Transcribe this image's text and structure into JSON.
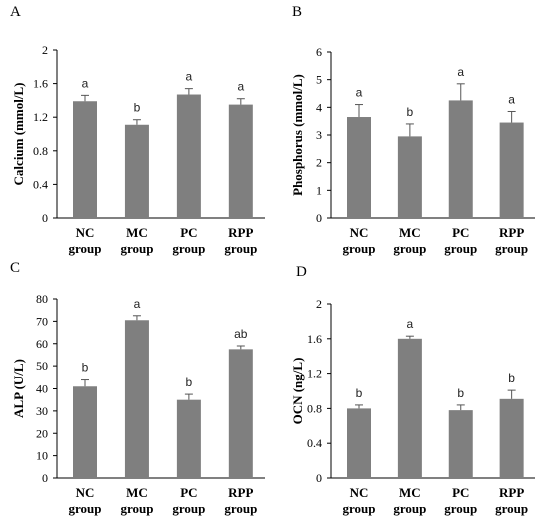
{
  "chart_data": [
    {
      "panel_label": "A",
      "type": "bar",
      "ylabel": "Calcium (mmol/L)",
      "ylim": [
        0,
        2
      ],
      "yticks": [
        "0",
        "0.4",
        "0.8",
        "1.2",
        "1.6",
        "2"
      ],
      "categories": [
        [
          "NC",
          "group"
        ],
        [
          "MC",
          "group"
        ],
        [
          "PC",
          "group"
        ],
        [
          "RPP",
          "group"
        ]
      ],
      "values": [
        1.39,
        1.11,
        1.47,
        1.35
      ],
      "errors": [
        0.07,
        0.06,
        0.07,
        0.07
      ],
      "significance": [
        "a",
        "b",
        "a",
        "a"
      ],
      "bar_color": "#7f7f7f"
    },
    {
      "panel_label": "B",
      "type": "bar",
      "ylabel": "Phosphorus (mmol/L)",
      "ylim": [
        0,
        6
      ],
      "yticks": [
        "0",
        "1",
        "2",
        "3",
        "4",
        "5",
        "6"
      ],
      "categories": [
        [
          "NC",
          "group"
        ],
        [
          "MC",
          "group"
        ],
        [
          "PC",
          "group"
        ],
        [
          "RPP",
          "group"
        ]
      ],
      "values": [
        3.65,
        2.95,
        4.25,
        3.45
      ],
      "errors": [
        0.45,
        0.45,
        0.6,
        0.4
      ],
      "significance": [
        "a",
        "b",
        "a",
        "a"
      ],
      "bar_color": "#7f7f7f"
    },
    {
      "panel_label": "C",
      "type": "bar",
      "ylabel": "ALP (U/L)",
      "ylim": [
        0,
        80
      ],
      "yticks": [
        "0",
        "10",
        "20",
        "30",
        "40",
        "50",
        "60",
        "70",
        "80"
      ],
      "categories": [
        [
          "NC",
          "group"
        ],
        [
          "MC",
          "group"
        ],
        [
          "PC",
          "group"
        ],
        [
          "RPP",
          "group"
        ]
      ],
      "values": [
        41,
        70.5,
        35,
        57.5
      ],
      "errors": [
        3,
        2,
        2.5,
        1.5
      ],
      "significance": [
        "b",
        "a",
        "b",
        "ab"
      ],
      "bar_color": "#7f7f7f"
    },
    {
      "panel_label": "D",
      "type": "bar",
      "ylabel": "OCN (ng/L)",
      "ylim": [
        0,
        2
      ],
      "yticks": [
        "0",
        "0.4",
        "0.8",
        "1.2",
        "1.6",
        "2"
      ],
      "categories": [
        [
          "NC",
          "group"
        ],
        [
          "MC",
          "group"
        ],
        [
          "PC",
          "group"
        ],
        [
          "RPP",
          "group"
        ]
      ],
      "values": [
        0.8,
        1.6,
        0.78,
        0.91
      ],
      "errors": [
        0.04,
        0.03,
        0.06,
        0.1
      ],
      "significance": [
        "b",
        "a",
        "b",
        "b"
      ],
      "bar_color": "#7f7f7f"
    }
  ]
}
